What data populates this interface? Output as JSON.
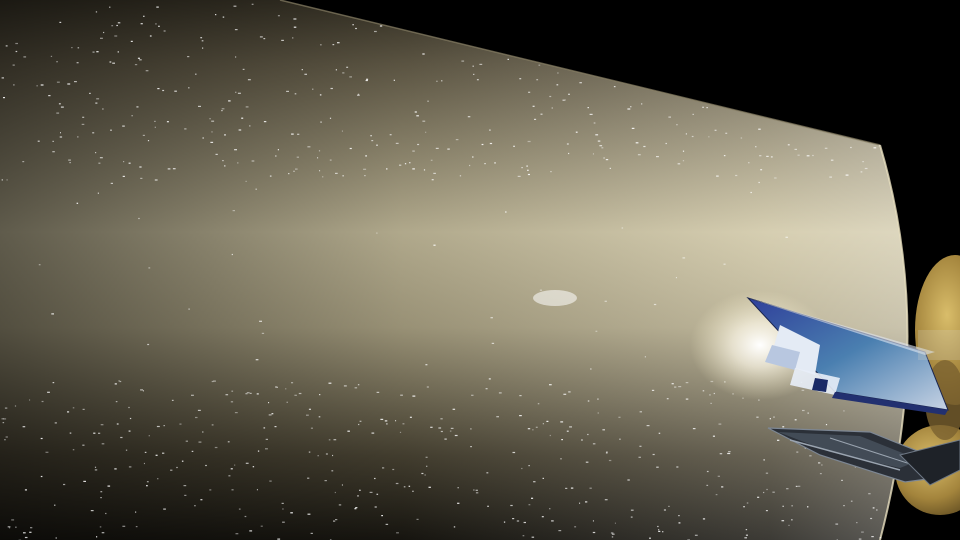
{
  "scene": {
    "subject": "spacecraft-render",
    "colors": {
      "space": "#000000",
      "cylinder_dark": "#3a3528",
      "cylinder_mid": "#8a8168",
      "cylinder_light": "#f6f0d6",
      "glow": "#ffffff",
      "panel_blue": "#3a4fa8",
      "panel_teal": "#4f8aa8",
      "panel_light": "#c9d4e6",
      "gold": "#b8994a",
      "gold_dark": "#6b5526",
      "truss": "#2a2f35"
    }
  }
}
